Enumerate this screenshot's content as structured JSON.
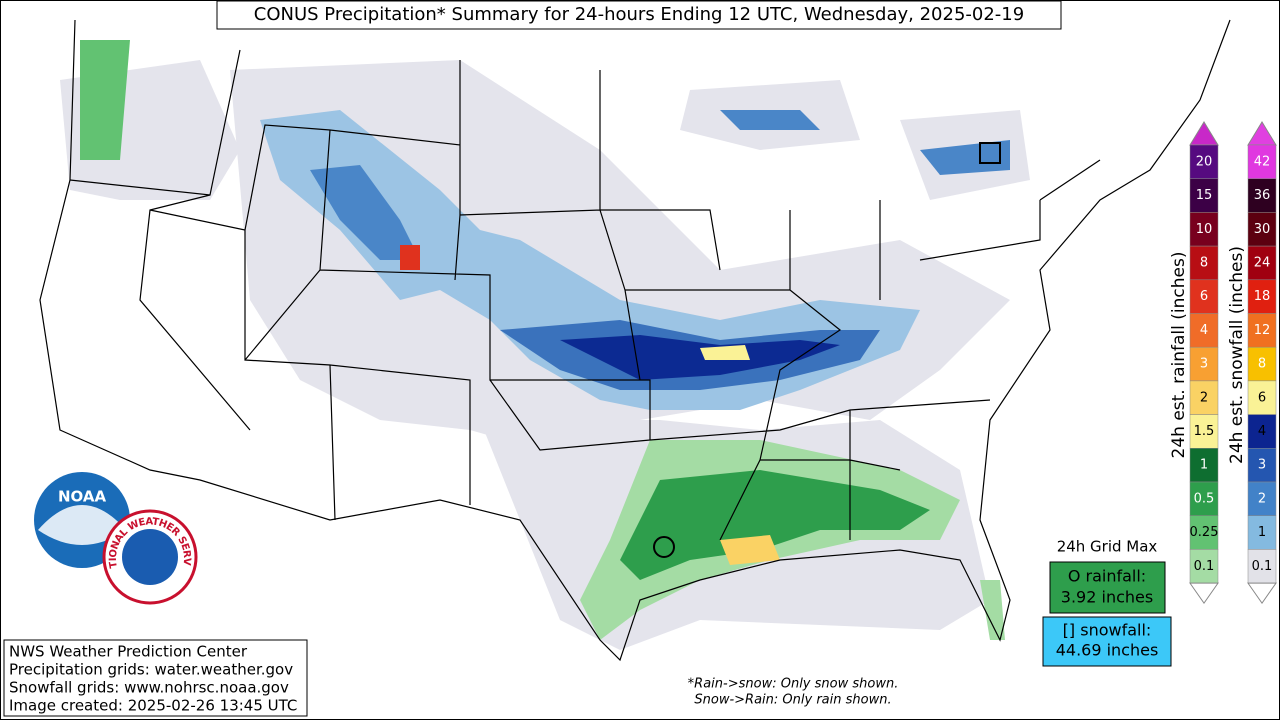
{
  "title": "CONUS Precipitation* Summary for 24-hours Ending 12 UTC, Wednesday, 2025-02-19",
  "rainfall_colorbar": {
    "label": "24h est. rainfall (inches)",
    "top_color": "#c828c8",
    "levels": [
      {
        "label": "20",
        "color": "#560a80"
      },
      {
        "label": "15",
        "color": "#3c0046"
      },
      {
        "label": "10",
        "color": "#78001e"
      },
      {
        "label": "8",
        "color": "#b80e14"
      },
      {
        "label": "6",
        "color": "#e0321e"
      },
      {
        "label": "4",
        "color": "#f06c28"
      },
      {
        "label": "3",
        "color": "#f8a032"
      },
      {
        "label": "2",
        "color": "#fad264"
      },
      {
        "label": "1.5",
        "color": "#faf296"
      },
      {
        "label": "1",
        "color": "#0e6e30"
      },
      {
        "label": "0.5",
        "color": "#2e9e4c"
      },
      {
        "label": "0.25",
        "color": "#62c272"
      },
      {
        "label": "0.1",
        "color": "#a4dca4"
      }
    ]
  },
  "snowfall_colorbar": {
    "label": "24h est. snowfall (inches)",
    "top_color": "#e040e0",
    "levels": [
      {
        "label": "42",
        "color": "#e038e0"
      },
      {
        "label": "36",
        "color": "#2e0020"
      },
      {
        "label": "30",
        "color": "#5c0010"
      },
      {
        "label": "24",
        "color": "#a00010"
      },
      {
        "label": "18",
        "color": "#e02010"
      },
      {
        "label": "12",
        "color": "#f07020"
      },
      {
        "label": "8",
        "color": "#f8c000"
      },
      {
        "label": "6",
        "color": "#faf296"
      },
      {
        "label": "4",
        "color": "#0c2490"
      },
      {
        "label": "3",
        "color": "#2456b0"
      },
      {
        "label": "2",
        "color": "#4282c8"
      },
      {
        "label": "1",
        "color": "#84bae0"
      },
      {
        "label": "0.1",
        "color": "#e2e2e8"
      }
    ]
  },
  "grid_max": {
    "heading": "24h Grid Max",
    "rainfall_label": "O rainfall:",
    "rainfall_value": "3.92 inches",
    "snowfall_label": "[] snowfall:",
    "snowfall_value": "44.69 inches"
  },
  "credits": [
    "NWS Weather Prediction Center",
    "Precipitation grids: water.weather.gov",
    "Snowfall grids: www.nohrsc.noaa.gov",
    "Image created: 2025-02-26 13:45 UTC"
  ],
  "notes": [
    "*Rain->snow: Only snow shown.",
    "Snow->Rain: Only rain shown."
  ],
  "logos": {
    "noaa": "NOAA",
    "nws": "NATIONAL WEATHER SERVICE"
  }
}
